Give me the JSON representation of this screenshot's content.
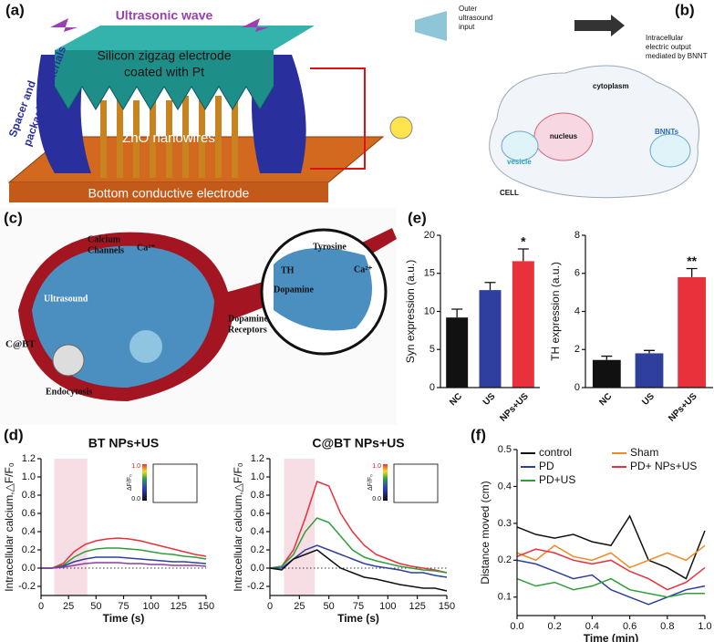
{
  "panel_labels": [
    "(a)",
    "(b)",
    "(c)",
    "(d)",
    "(e)",
    "(f)"
  ],
  "diagram_a": {
    "wave": "Ultrasonic wave",
    "electrode_1": "Silicon zigzag electrode",
    "electrode_2": "coated with Pt",
    "nanowires": "ZnO nanowires",
    "bottom": "Bottom conductive electrode",
    "spacer_1": "Spacer and",
    "spacer_2": "packaging materials"
  },
  "diagram_b": {
    "input_1": "Outer",
    "input_2": "ultrasound",
    "input_3": "input",
    "output_1": "Intracellular",
    "output_2": "electric output",
    "output_3": "mediated by BNNT",
    "cytoplasm": "cytoplasm",
    "nucleus": "nucleus",
    "bnnts": "BNNTs",
    "vesicle": "vesicle",
    "cell": "CELL"
  },
  "diagram_c": {
    "channels_1": "Calcium",
    "channels_2": "Channels",
    "ca": "Ca²⁺",
    "ultrasound": "Ultrasound",
    "cbt": "C@BT",
    "endocytosis": "Endocytosis",
    "tyrosine": "Tyrosine",
    "th": "TH",
    "ca_inner": "Ca²⁺",
    "dopamine": "Dopamine",
    "receptors_1": "Dopamine",
    "receptors_2": "Receptors"
  },
  "chart_data": [
    {
      "type": "bar",
      "y_label": "Syn expression (a.u.)",
      "categories": [
        "NC",
        "US",
        "NPs+US"
      ],
      "values": [
        9.2,
        12.8,
        16.6
      ],
      "errors": [
        1.1,
        1.0,
        1.6
      ],
      "colors": [
        "#111111",
        "#2e3f9e",
        "#e8313a"
      ],
      "annotation": "*",
      "ylim": [
        0,
        20
      ],
      "yticks": [
        0,
        5,
        10,
        15,
        20
      ]
    },
    {
      "type": "bar",
      "y_label": "TH expression (a.u.)",
      "categories": [
        "NC",
        "US",
        "NPs+US"
      ],
      "values": [
        1.45,
        1.8,
        5.8
      ],
      "errors": [
        0.2,
        0.15,
        0.45
      ],
      "colors": [
        "#111111",
        "#2e3f9e",
        "#e8313a"
      ],
      "annotation": "**",
      "ylim": [
        0,
        8
      ],
      "yticks": [
        0,
        2,
        4,
        6,
        8
      ]
    },
    {
      "type": "line",
      "title": "BT NPs+US",
      "x_label": "Time (s)",
      "y_label": "Intracellular calcium,△F/F₀",
      "shaded_x": [
        12,
        42
      ],
      "inset_colorbar": {
        "max_label": "1.0",
        "min_label": "0.0",
        "label": "ΔF/F₀"
      },
      "x": [
        0,
        10,
        20,
        30,
        40,
        50,
        60,
        70,
        80,
        90,
        100,
        110,
        120,
        130,
        140,
        150
      ],
      "series": [
        {
          "name": "red",
          "color": "#e8313a",
          "values": [
            0,
            0,
            0.05,
            0.18,
            0.26,
            0.3,
            0.32,
            0.33,
            0.32,
            0.3,
            0.27,
            0.24,
            0.21,
            0.18,
            0.15,
            0.13
          ]
        },
        {
          "name": "green",
          "color": "#2e9e3a",
          "values": [
            0,
            0,
            0.03,
            0.12,
            0.18,
            0.21,
            0.22,
            0.22,
            0.21,
            0.2,
            0.18,
            0.16,
            0.15,
            0.13,
            0.12,
            0.1
          ]
        },
        {
          "name": "blue",
          "color": "#2e3f9e",
          "values": [
            0,
            0,
            0.02,
            0.07,
            0.1,
            0.12,
            0.12,
            0.12,
            0.11,
            0.1,
            0.09,
            0.08,
            0.07,
            0.07,
            0.06,
            0.05
          ]
        },
        {
          "name": "purple",
          "color": "#8a3fa0",
          "values": [
            0,
            0,
            0.01,
            0.03,
            0.05,
            0.06,
            0.06,
            0.06,
            0.05,
            0.05,
            0.04,
            0.04,
            0.03,
            0.03,
            0.03,
            0.02
          ]
        }
      ],
      "xlim": [
        0,
        150
      ],
      "xticks": [
        0,
        25,
        50,
        75,
        100,
        125,
        150
      ],
      "ylim": [
        -0.3,
        1.2
      ],
      "yticks": [
        -0.2,
        {
          "value": 0,
          "label": "0.0"
        },
        0.2,
        0.4,
        0.6,
        0.8,
        {
          "value": 1,
          "label": "1.0"
        },
        1.2
      ]
    },
    {
      "type": "line",
      "title": "C@BT NPs+US",
      "x_label": "Time (s)",
      "y_label": "Intracellular calcium,△F/F₀",
      "shaded_x": [
        12,
        38
      ],
      "inset_colorbar": {
        "max_label": "1.0",
        "min_label": "0.0",
        "label": "ΔF/F₀"
      },
      "x": [
        0,
        10,
        20,
        30,
        40,
        50,
        60,
        70,
        80,
        90,
        100,
        110,
        120,
        130,
        140,
        150
      ],
      "series": [
        {
          "name": "red",
          "color": "#e8313a",
          "values": [
            0,
            0.02,
            0.2,
            0.55,
            0.95,
            0.9,
            0.6,
            0.4,
            0.25,
            0.15,
            0.1,
            0.05,
            0.02,
            0,
            -0.02,
            -0.05
          ]
        },
        {
          "name": "green",
          "color": "#2e9e3a",
          "values": [
            0,
            0.02,
            0.15,
            0.4,
            0.55,
            0.5,
            0.35,
            0.2,
            0.12,
            0.08,
            0.05,
            0.02,
            0,
            -0.02,
            -0.03,
            -0.05
          ]
        },
        {
          "name": "blue",
          "color": "#2e3f9e",
          "values": [
            0,
            0,
            0.1,
            0.2,
            0.25,
            0.2,
            0.15,
            0.1,
            0.05,
            0.02,
            0,
            -0.02,
            -0.05,
            -0.05,
            -0.08,
            -0.1
          ]
        },
        {
          "name": "black",
          "color": "#111111",
          "values": [
            0,
            -0.02,
            0.1,
            0.15,
            0.2,
            0.1,
            0,
            -0.05,
            -0.1,
            -0.12,
            -0.15,
            -0.18,
            -0.2,
            -0.22,
            -0.22,
            -0.25
          ]
        }
      ],
      "xlim": [
        0,
        150
      ],
      "xticks": [
        0,
        25,
        50,
        75,
        100,
        125,
        150
      ],
      "ylim": [
        -0.3,
        1.2
      ],
      "yticks": [
        -0.2,
        {
          "value": 0,
          "label": "0.0"
        },
        0.2,
        0.4,
        0.6,
        0.8,
        {
          "value": 1,
          "label": "1.0"
        },
        1.2
      ]
    },
    {
      "type": "line",
      "x_label": "Time (min)",
      "y_label": "Distance moved (cm)",
      "legend": true,
      "x": [
        0,
        0.1,
        0.2,
        0.3,
        0.4,
        0.5,
        0.6,
        0.7,
        0.8,
        0.9,
        1
      ],
      "series": [
        {
          "name": "control",
          "color": "#111111",
          "values": [
            0.29,
            0.27,
            0.26,
            0.27,
            0.25,
            0.24,
            0.32,
            0.2,
            0.18,
            0.15,
            0.28
          ]
        },
        {
          "name": "Sham",
          "color": "#f08a24",
          "values": [
            0.22,
            0.2,
            0.24,
            0.21,
            0.2,
            0.22,
            0.18,
            0.2,
            0.22,
            0.2,
            0.24
          ]
        },
        {
          "name": "PD",
          "color": "#2e3f9e",
          "values": [
            0.2,
            0.19,
            0.17,
            0.15,
            0.16,
            0.12,
            0.1,
            0.08,
            0.1,
            0.12,
            0.13
          ]
        },
        {
          "name": "PD+ NPs+US",
          "color": "#e8313a",
          "values": [
            0.21,
            0.23,
            0.22,
            0.2,
            0.19,
            0.2,
            0.17,
            0.15,
            0.12,
            0.14,
            0.18
          ]
        },
        {
          "name": "PD+US",
          "color": "#2e9e3a",
          "values": [
            0.15,
            0.13,
            0.14,
            0.12,
            0.13,
            0.15,
            0.12,
            0.11,
            0.1,
            0.11,
            0.11
          ]
        }
      ],
      "xlim": [
        0,
        1
      ],
      "xticks": [
        {
          "value": 0,
          "label": "0.0"
        },
        0.2,
        0.4,
        0.6,
        0.8,
        {
          "value": 1,
          "label": "1.0"
        }
      ],
      "ylim": [
        0.05,
        0.5
      ],
      "yticks": [
        0.1,
        0.2,
        0.3,
        0.4,
        0.5
      ]
    }
  ]
}
